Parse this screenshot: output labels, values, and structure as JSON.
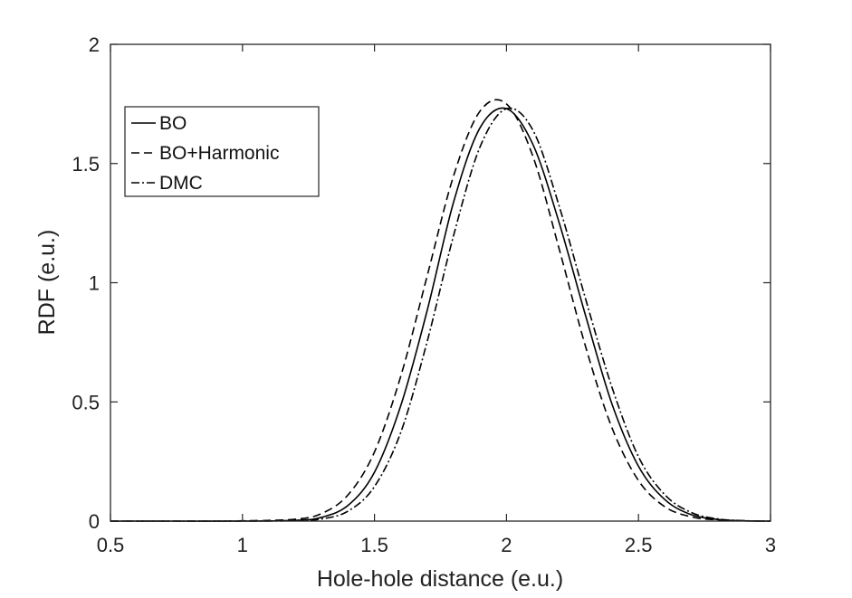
{
  "chart_data": {
    "type": "line",
    "title": "",
    "xlabel": "Hole-hole distance (e.u.)",
    "ylabel": "RDF (e.u.)",
    "xlim": [
      0.5,
      3
    ],
    "ylim": [
      0,
      2
    ],
    "xticks": [
      0.5,
      1,
      1.5,
      2,
      2.5,
      3
    ],
    "yticks": [
      0,
      0.5,
      1,
      1.5,
      2
    ],
    "xtick_labels": [
      "0.5",
      "1",
      "1.5",
      "2",
      "2.5",
      "3"
    ],
    "ytick_labels": [
      "0",
      "0.5",
      "1",
      "1.5",
      "2"
    ],
    "grid": false,
    "legend": {
      "position": "top-left",
      "box": true
    },
    "x": [
      0.5,
      0.75,
      1.0,
      1.2,
      1.3,
      1.4,
      1.5,
      1.6,
      1.7,
      1.8,
      1.9,
      2.0,
      2.1,
      2.2,
      2.3,
      2.4,
      2.5,
      2.6,
      2.7,
      2.8,
      2.9,
      3.0
    ],
    "series": [
      {
        "name": "BO",
        "style": "solid",
        "values": [
          0,
          0,
          0,
          0.003,
          0.016,
          0.066,
          0.205,
          0.486,
          0.885,
          1.34,
          1.65,
          1.73,
          1.58,
          1.25,
          0.86,
          0.49,
          0.23,
          0.09,
          0.027,
          0.007,
          0.001,
          0
        ]
      },
      {
        "name": "BO+Harmonic",
        "style": "dashed",
        "values": [
          0,
          0,
          0.001,
          0.008,
          0.032,
          0.11,
          0.29,
          0.61,
          1.03,
          1.45,
          1.72,
          1.75,
          1.53,
          1.14,
          0.73,
          0.39,
          0.17,
          0.06,
          0.018,
          0.005,
          0.001,
          0
        ]
      },
      {
        "name": "DMC",
        "style": "dashdot",
        "values": [
          0,
          0,
          0,
          0.002,
          0.009,
          0.042,
          0.145,
          0.374,
          0.755,
          1.2,
          1.57,
          1.73,
          1.64,
          1.32,
          0.93,
          0.56,
          0.27,
          0.11,
          0.036,
          0.009,
          0.002,
          0
        ]
      }
    ]
  }
}
